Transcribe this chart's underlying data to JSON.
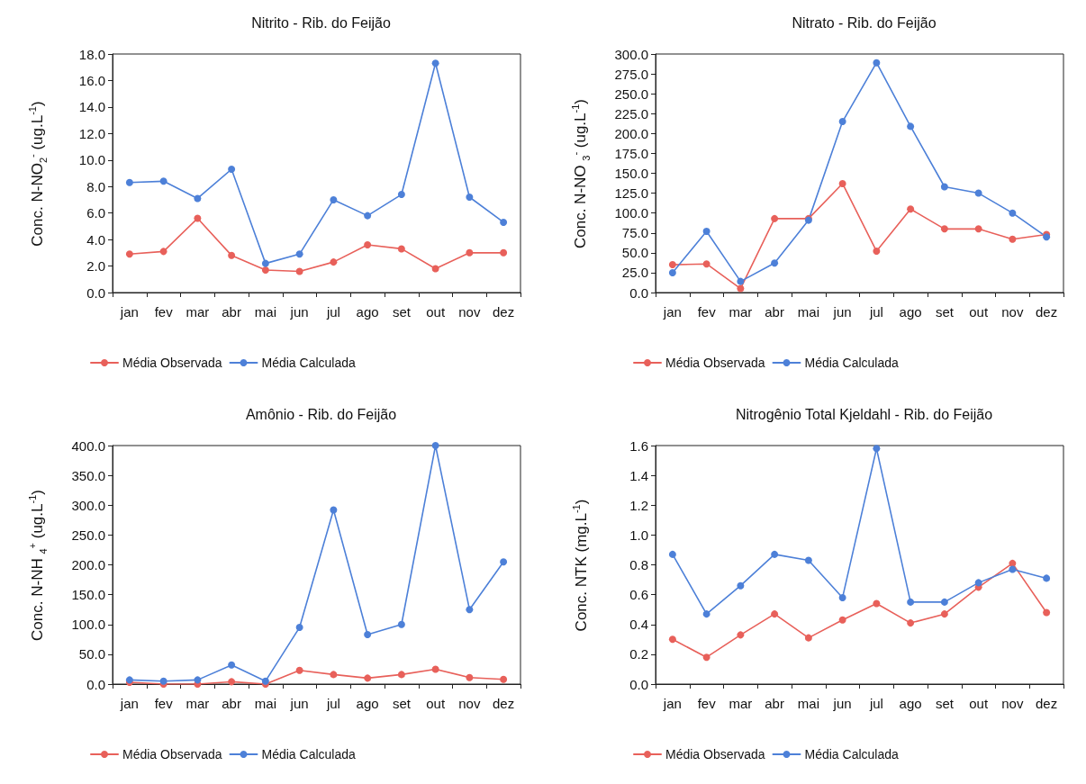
{
  "chart_data": [
    {
      "type": "line",
      "title": "Nitrito - Rib. do Feijão",
      "ylabel": "Conc. N-NO$_{2}$$^{-}$ (ug.L$^{-1}$)",
      "categories": [
        "jan",
        "fev",
        "mar",
        "abr",
        "mai",
        "jun",
        "jul",
        "ago",
        "set",
        "out",
        "nov",
        "dez"
      ],
      "series": [
        {
          "name": "Média Observada",
          "color": "#e8605a",
          "values": [
            2.9,
            3.1,
            5.6,
            2.8,
            1.7,
            1.6,
            2.3,
            3.6,
            3.3,
            1.8,
            3.0,
            3.0
          ]
        },
        {
          "name": "Média Calculada",
          "color": "#4d80d8",
          "values": [
            8.3,
            8.4,
            7.1,
            9.3,
            2.2,
            2.9,
            7.0,
            5.8,
            7.4,
            17.3,
            7.2,
            5.3
          ]
        }
      ],
      "ylim": [
        0,
        18
      ],
      "yticks": [
        {
          "value": 0,
          "label": "0.0"
        },
        {
          "value": 2,
          "label": "2.0"
        },
        {
          "value": 4,
          "label": "4.0"
        },
        {
          "value": 6,
          "label": "6.0"
        },
        {
          "value": 8,
          "label": "8.0"
        },
        {
          "value": 10,
          "label": "10.0"
        },
        {
          "value": 12,
          "label": "12.0"
        },
        {
          "value": 14,
          "label": "14.0"
        },
        {
          "value": 16,
          "label": "16.0"
        },
        {
          "value": 18,
          "label": "18.0"
        }
      ],
      "legend": "bottom left",
      "marker": "circle",
      "line_style": "solid"
    },
    {
      "type": "line",
      "title": "Nitrato - Rib. do Feijão",
      "ylabel": "Conc. N-NO $_{3}$$^{-}$ (ug.L$^{-1}$)",
      "categories": [
        "jan",
        "fev",
        "mar",
        "abr",
        "mai",
        "jun",
        "jul",
        "ago",
        "set",
        "out",
        "nov",
        "dez"
      ],
      "series": [
        {
          "name": "Média Observada",
          "color": "#e8605a",
          "values": [
            35,
            36,
            5,
            93,
            93,
            137,
            52,
            105,
            80,
            80,
            67,
            73
          ]
        },
        {
          "name": "Média Calculada",
          "color": "#4d80d8",
          "values": [
            25,
            77,
            14,
            37,
            91,
            215,
            289,
            209,
            133,
            125,
            100,
            70
          ]
        }
      ],
      "ylim": [
        0,
        300
      ],
      "yticks": [
        {
          "value": 0,
          "label": "0.0"
        },
        {
          "value": 25,
          "label": "25.0"
        },
        {
          "value": 50,
          "label": "50.0"
        },
        {
          "value": 75,
          "label": "75.0"
        },
        {
          "value": 100,
          "label": "100.0"
        },
        {
          "value": 125,
          "label": "125.0"
        },
        {
          "value": 150,
          "label": "150.0"
        },
        {
          "value": 175,
          "label": "175.0"
        },
        {
          "value": 200,
          "label": "200.0"
        },
        {
          "value": 225,
          "label": "225.0"
        },
        {
          "value": 250,
          "label": "250.0"
        },
        {
          "value": 275,
          "label": "275.0"
        },
        {
          "value": 300,
          "label": "300.0"
        }
      ],
      "legend": "bottom left",
      "marker": "circle",
      "line_style": "solid"
    },
    {
      "type": "line",
      "title": "Amônio - Rib. do Feijão",
      "ylabel": "Conc. N-NH $_{4}$$^{+}$ (ug.L$^{-1}$)",
      "categories": [
        "jan",
        "fev",
        "mar",
        "abr",
        "mai",
        "jun",
        "jul",
        "ago",
        "set",
        "out",
        "nov",
        "dez"
      ],
      "series": [
        {
          "name": "Média Observada",
          "color": "#e8605a",
          "values": [
            3,
            0,
            0,
            4,
            0,
            23,
            16,
            10,
            16,
            25,
            11,
            8
          ]
        },
        {
          "name": "Média Calculada",
          "color": "#4d80d8",
          "values": [
            7,
            5,
            7,
            32,
            5,
            95,
            292,
            83,
            100,
            400,
            125,
            205
          ]
        }
      ],
      "ylim": [
        0,
        400
      ],
      "yticks": [
        {
          "value": 0,
          "label": "0.0"
        },
        {
          "value": 50,
          "label": "50.0"
        },
        {
          "value": 100,
          "label": "100.0"
        },
        {
          "value": 150,
          "label": "150.0"
        },
        {
          "value": 200,
          "label": "200.0"
        },
        {
          "value": 250,
          "label": "250.0"
        },
        {
          "value": 300,
          "label": "300.0"
        },
        {
          "value": 350,
          "label": "350.0"
        },
        {
          "value": 400,
          "label": "400.0"
        }
      ],
      "legend": "bottom left",
      "marker": "circle",
      "line_style": "solid"
    },
    {
      "type": "line",
      "title": "Nitrogênio Total Kjeldahl - Rib. do Feijão",
      "ylabel": "Conc. NTK (mg.L$^{-1}$)",
      "categories": [
        "jan",
        "fev",
        "mar",
        "abr",
        "mai",
        "jun",
        "jul",
        "ago",
        "set",
        "out",
        "nov",
        "dez"
      ],
      "series": [
        {
          "name": "Média Observada",
          "color": "#e8605a",
          "values": [
            0.3,
            0.18,
            0.33,
            0.47,
            0.31,
            0.43,
            0.54,
            0.41,
            0.47,
            0.65,
            0.81,
            0.48
          ]
        },
        {
          "name": "Média Calculada",
          "color": "#4d80d8",
          "values": [
            0.87,
            0.47,
            0.66,
            0.87,
            0.83,
            0.58,
            1.58,
            0.55,
            0.55,
            0.68,
            0.77,
            0.71
          ]
        }
      ],
      "ylim": [
        0,
        1.6
      ],
      "yticks": [
        {
          "value": 0,
          "label": "0.0"
        },
        {
          "value": 0.2,
          "label": "0.2"
        },
        {
          "value": 0.4,
          "label": "0.4"
        },
        {
          "value": 0.6,
          "label": "0.6"
        },
        {
          "value": 0.8,
          "label": "0.8"
        },
        {
          "value": 1.0,
          "label": "1.0"
        },
        {
          "value": 1.2,
          "label": "1.2"
        },
        {
          "value": 1.4,
          "label": "1.4"
        },
        {
          "value": 1.6,
          "label": "1.6"
        }
      ],
      "legend": "bottom left",
      "marker": "circle",
      "line_style": "solid"
    }
  ]
}
